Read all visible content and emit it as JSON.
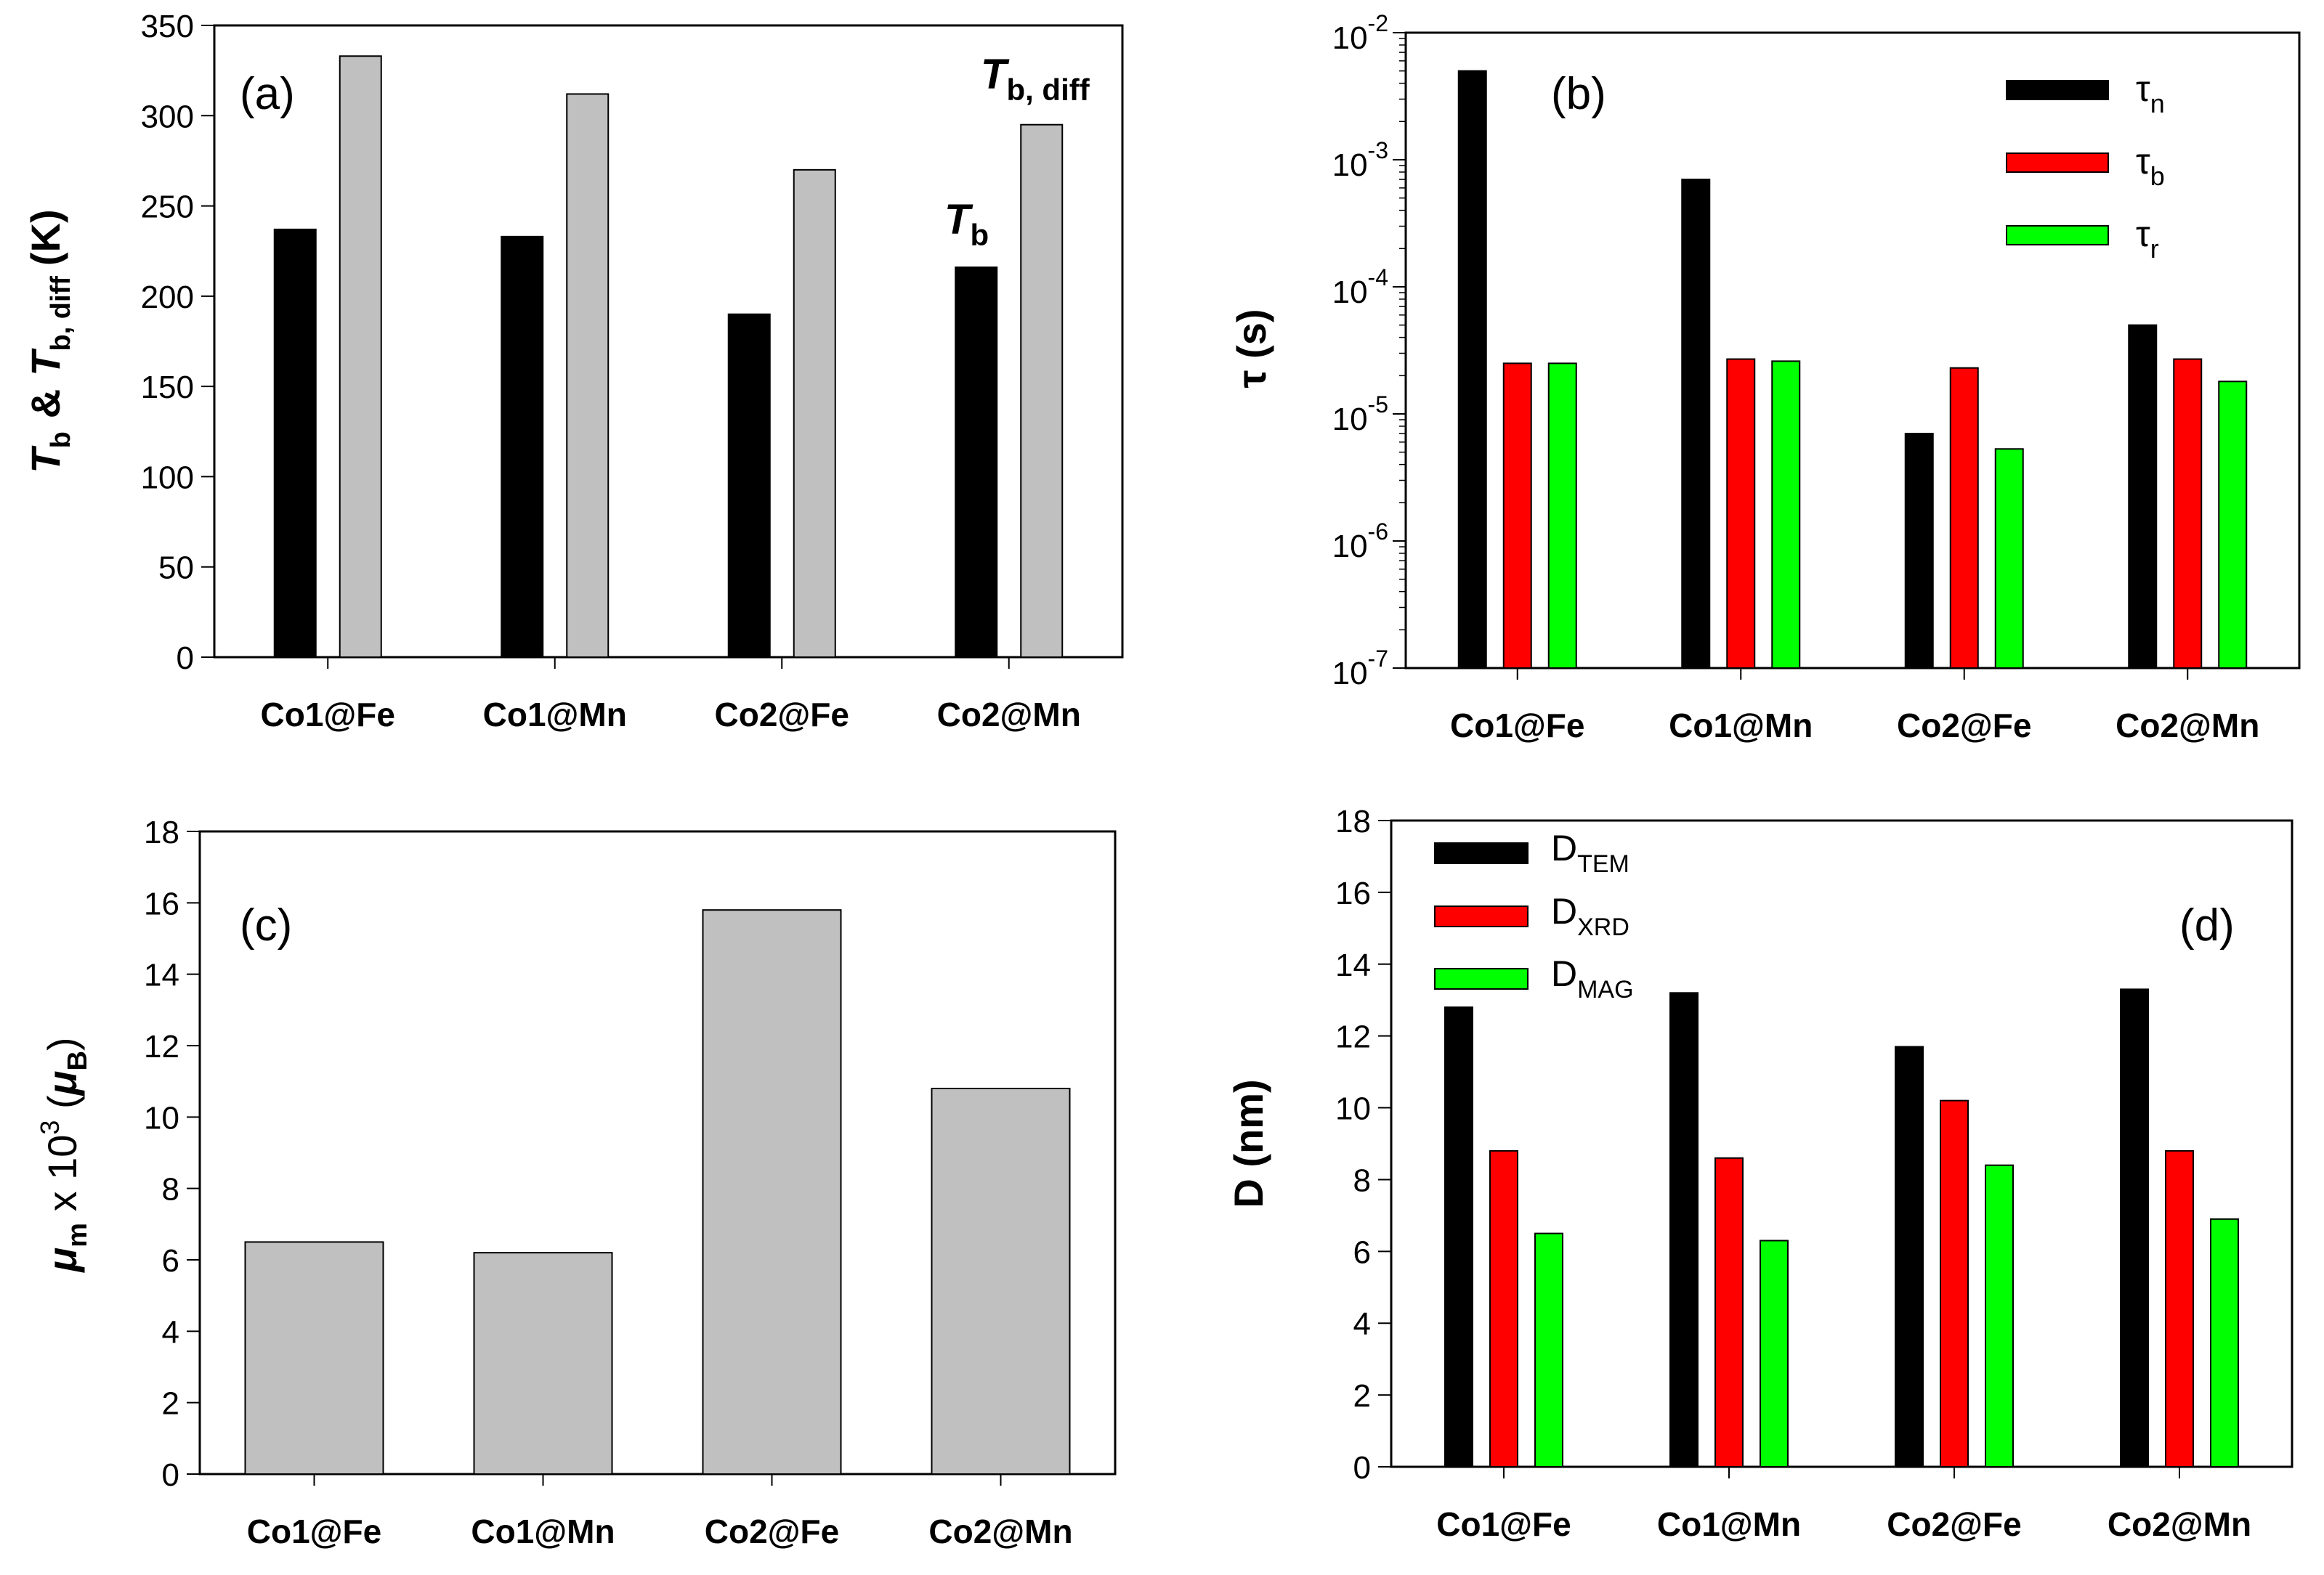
{
  "colors": {
    "black": "#000000",
    "gray": "#c0c0c0",
    "red": "#ff0000",
    "green": "#00ff00"
  },
  "chart_data": [
    {
      "type": "bar",
      "panel_label": "(a)",
      "categories": [
        "Co1@Fe",
        "Co1@Mn",
        "Co2@Fe",
        "Co2@Mn"
      ],
      "series": [
        {
          "name": "Tb",
          "color": "#000000",
          "values": [
            237,
            233,
            190,
            216
          ]
        },
        {
          "name": "Tb, diff",
          "color": "#c0c0c0",
          "values": [
            333,
            312,
            270,
            295
          ]
        }
      ],
      "ylabel": {
        "base1": "T",
        "sub1": "b",
        "amp": "&",
        "base2": "T",
        "sub2": "b, diff",
        "unit": "(K)"
      },
      "ylim": [
        0,
        350
      ],
      "yticks": [
        "0",
        "50",
        "100",
        "150",
        "200",
        "250",
        "300",
        "350"
      ],
      "annotations": {
        "tb": {
          "base": "T",
          "sub": "b"
        },
        "tbdiff": {
          "base": "T",
          "sub": "b, diff"
        }
      }
    },
    {
      "type": "bar",
      "scale": "log",
      "panel_label": "(b)",
      "categories": [
        "Co1@Fe",
        "Co1@Mn",
        "Co2@Fe",
        "Co2@Mn"
      ],
      "series": [
        {
          "name": "τn",
          "base": "τ",
          "sub": "n",
          "color": "#000000",
          "values": [
            0.005,
            0.0007,
            7e-06,
            5e-05
          ]
        },
        {
          "name": "τb",
          "base": "τ",
          "sub": "b",
          "color": "#ff0000",
          "values": [
            2.5e-05,
            2.7e-05,
            2.3e-05,
            2.7e-05
          ]
        },
        {
          "name": "τr",
          "base": "τ",
          "sub": "r",
          "color": "#00ff00",
          "values": [
            2.5e-05,
            2.6e-05,
            5.3e-06,
            1.8e-05
          ]
        }
      ],
      "ylabel": "τ (s)",
      "ylim": [
        1e-07,
        0.01
      ],
      "yticks": [
        {
          "base": "10",
          "exp": "-7"
        },
        {
          "base": "10",
          "exp": "-6"
        },
        {
          "base": "10",
          "exp": "-5"
        },
        {
          "base": "10",
          "exp": "-4"
        },
        {
          "base": "10",
          "exp": "-3"
        },
        {
          "base": "10",
          "exp": "-2"
        }
      ]
    },
    {
      "type": "bar",
      "panel_label": "(c)",
      "categories": [
        "Co1@Fe",
        "Co1@Mn",
        "Co2@Fe",
        "Co2@Mn"
      ],
      "series": [
        {
          "name": "μm",
          "color": "#c0c0c0",
          "values": [
            6.5,
            6.2,
            15.8,
            10.8
          ]
        }
      ],
      "ylabel": {
        "mu": "μ",
        "msub": "m",
        "mid": " x 10",
        "exp": "3",
        "open": " (",
        "mu2": "μ",
        "bsub": "B",
        "close": ")"
      },
      "ylim": [
        0,
        18
      ],
      "yticks": [
        "0",
        "2",
        "4",
        "6",
        "8",
        "10",
        "12",
        "14",
        "16",
        "18"
      ]
    },
    {
      "type": "bar",
      "panel_label": "(d)",
      "categories": [
        "Co1@Fe",
        "Co1@Mn",
        "Co2@Fe",
        "Co2@Mn"
      ],
      "series": [
        {
          "name": "DTEM",
          "base": "D",
          "sub": "TEM",
          "color": "#000000",
          "values": [
            12.8,
            13.2,
            11.7,
            13.3
          ]
        },
        {
          "name": "DXRD",
          "base": "D",
          "sub": "XRD",
          "color": "#ff0000",
          "values": [
            8.8,
            8.6,
            10.2,
            8.8
          ]
        },
        {
          "name": "DMAG",
          "base": "D",
          "sub": "MAG",
          "color": "#00ff00",
          "values": [
            6.5,
            6.3,
            8.4,
            6.9
          ]
        }
      ],
      "ylabel": "D (nm)",
      "ylim": [
        0,
        18
      ],
      "yticks": [
        "0",
        "2",
        "4",
        "6",
        "8",
        "10",
        "12",
        "14",
        "16",
        "18"
      ]
    }
  ]
}
